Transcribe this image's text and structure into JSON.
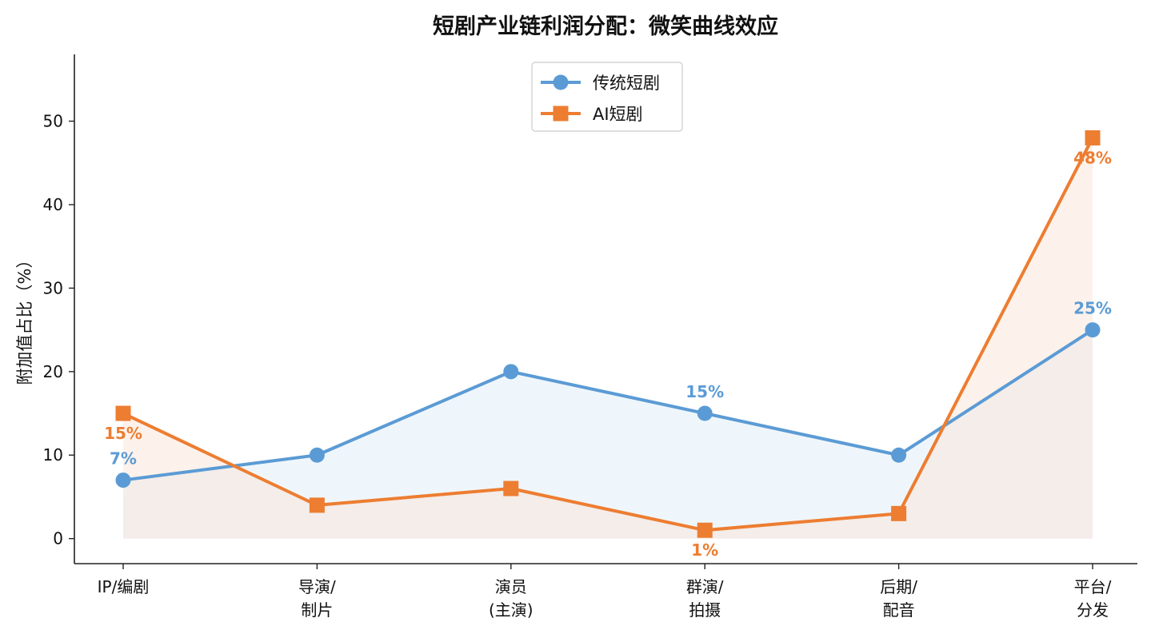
{
  "chart_data": {
    "type": "line",
    "title": "短剧产业链利润分配：微笑曲线效应",
    "ylabel": "附加值占比（%）",
    "xlabel": "",
    "categories": [
      {
        "line1": "IP/编剧",
        "line2": ""
      },
      {
        "line1": "导演/",
        "line2": "制片"
      },
      {
        "line1": "演员",
        "line2": "(主演)"
      },
      {
        "line1": "群演/",
        "line2": "拍摄"
      },
      {
        "line1": "后期/",
        "line2": "配音"
      },
      {
        "line1": "平台/",
        "line2": "分发"
      }
    ],
    "yticks": [
      "0",
      "10",
      "20",
      "30",
      "40",
      "50"
    ],
    "ylim": [
      -3,
      58
    ],
    "grid": false,
    "legend_position": "top-center",
    "series": [
      {
        "name": "传统短剧",
        "values": [
          7,
          10,
          20,
          15,
          10,
          25
        ],
        "marker": "circle",
        "color": "#5B9BD5",
        "fill_color": "#DCEAF7",
        "labels": [
          {
            "index": 0,
            "text": "7%",
            "position": "above"
          },
          {
            "index": 3,
            "text": "15%",
            "position": "above"
          },
          {
            "index": 5,
            "text": "25%",
            "position": "above"
          }
        ]
      },
      {
        "name": "AI短剧",
        "values": [
          15,
          4,
          6,
          1,
          3,
          48
        ],
        "marker": "square",
        "color": "#ED7D31",
        "fill_color": "#FBE3D3",
        "labels": [
          {
            "index": 0,
            "text": "15%",
            "position": "below"
          },
          {
            "index": 3,
            "text": "1%",
            "position": "below"
          },
          {
            "index": 5,
            "text": "48%",
            "position": "below"
          }
        ]
      }
    ]
  }
}
